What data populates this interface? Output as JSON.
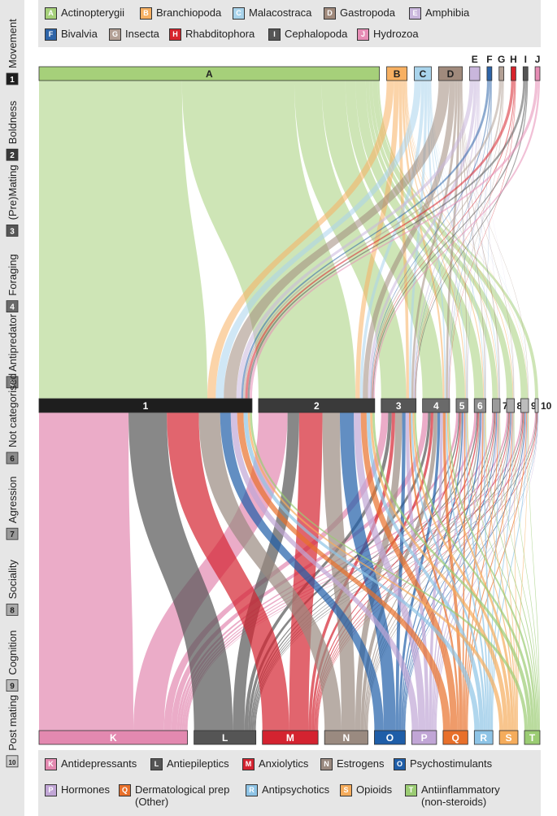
{
  "species_legend": [
    {
      "code": "A",
      "name": "Actinopterygii",
      "color": "#a6d07a"
    },
    {
      "code": "B",
      "name": "Branchiopoda",
      "color": "#f7b062"
    },
    {
      "code": "C",
      "name": "Malacostraca",
      "color": "#a9d4ec"
    },
    {
      "code": "D",
      "name": "Gastropoda",
      "color": "#a08a7c"
    },
    {
      "code": "E",
      "name": "Amphibia",
      "color": "#c9b6dc"
    },
    {
      "code": "F",
      "name": "Bivalvia",
      "color": "#2d64a8"
    },
    {
      "code": "G",
      "name": "Insecta",
      "color": "#b3a095"
    },
    {
      "code": "H",
      "name": "Rhabditophora",
      "color": "#d7232b"
    },
    {
      "code": "I",
      "name": "Cephalopoda",
      "color": "#555555"
    },
    {
      "code": "J",
      "name": "Hydrozoa",
      "color": "#e68db5"
    }
  ],
  "drug_legend": [
    {
      "code": "K",
      "name": "Antidepressants",
      "color": "#e389b0"
    },
    {
      "code": "L",
      "name": "Antiepileptics",
      "color": "#555555"
    },
    {
      "code": "M",
      "name": "Anxiolytics",
      "color": "#d42330"
    },
    {
      "code": "N",
      "name": "Estrogens",
      "color": "#9a8a80"
    },
    {
      "code": "O",
      "name": "Psychostimulants",
      "color": "#1f5ea8"
    },
    {
      "code": "P",
      "name": "Hormones",
      "color": "#c1a6d6"
    },
    {
      "code": "Q",
      "name": "Dermatological prep\n(Other)",
      "color": "#e8702b"
    },
    {
      "code": "R",
      "name": "Antipsychotics",
      "color": "#8ec4e6"
    },
    {
      "code": "S",
      "name": "Opioids",
      "color": "#f5ac5c"
    },
    {
      "code": "T",
      "name": "Antiinflammatory\n(non-steroids)",
      "color": "#9bcc73"
    }
  ],
  "behaviour_legend": [
    {
      "code": "1",
      "name": "Movement"
    },
    {
      "code": "2",
      "name": "Boldness"
    },
    {
      "code": "3",
      "name": "(Pre)Mating"
    },
    {
      "code": "4",
      "name": "Foraging"
    },
    {
      "code": "5",
      "name": "Antipredator"
    },
    {
      "code": "6",
      "name": "Not categorised"
    },
    {
      "code": "7",
      "name": "Agression"
    },
    {
      "code": "8",
      "name": "Sociality"
    },
    {
      "code": "9",
      "name": "Cognition"
    },
    {
      "code": "10",
      "name": "Post mating"
    }
  ],
  "behaviour_colors": [
    "#1e1e1e",
    "#3a3a3a",
    "#565656",
    "#6a6a6a",
    "#7e7e7e",
    "#8c8c8c",
    "#9a9a9a",
    "#ababab",
    "#bcbcbc",
    "#cccccc"
  ],
  "chart_data": {
    "type": "sankey",
    "top_nodes": [
      "A",
      "B",
      "C",
      "D",
      "E",
      "F",
      "G",
      "H",
      "I",
      "J"
    ],
    "top_values": [
      100,
      6,
      5,
      7,
      3,
      1,
      1,
      1,
      1,
      1
    ],
    "middle_nodes": [
      "1",
      "2",
      "3",
      "4",
      "5",
      "6",
      "7",
      "8",
      "9",
      "10"
    ],
    "middle_values": [
      55,
      30,
      9,
      7,
      3,
      3,
      2,
      2,
      2,
      0.5
    ],
    "bottom_nodes": [
      "K",
      "L",
      "M",
      "N",
      "O",
      "P",
      "Q",
      "R",
      "S",
      "T"
    ],
    "bottom_values": [
      48,
      20,
      18,
      14,
      10,
      8,
      8,
      6,
      6,
      5
    ]
  }
}
